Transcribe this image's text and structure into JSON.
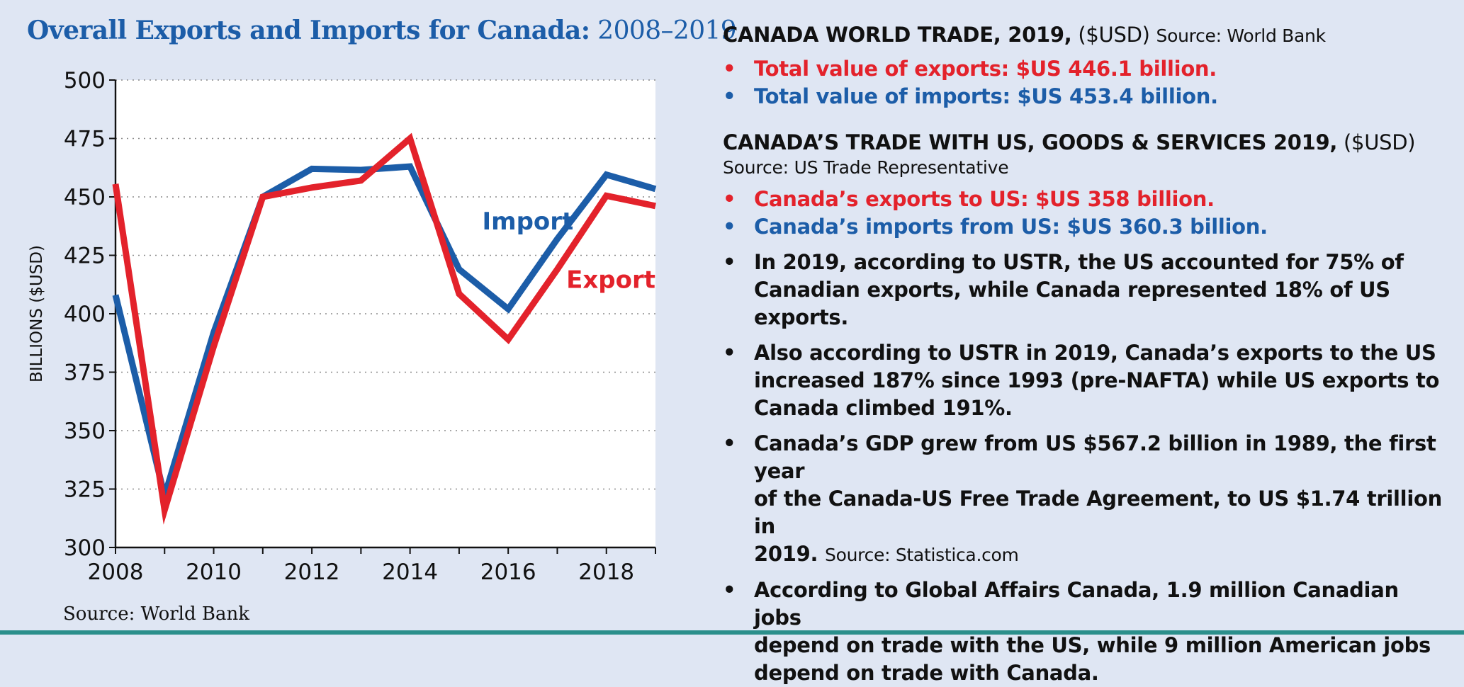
{
  "chart_title": {
    "bold": "Overall Exports and Imports for Canada:",
    "years": "2008–2019"
  },
  "chart_source": "Source: World Bank",
  "colors": {
    "export": "#e3222b",
    "import": "#1c5da8",
    "background": "#dfe6f3",
    "panel": "#ffffff"
  },
  "chart_data": {
    "type": "line",
    "title": "Overall Exports and Imports for Canada: 2008–2019",
    "xlabel": "",
    "ylabel": "BILLIONS ($USD)",
    "x": [
      2008,
      2009,
      2010,
      2011,
      2012,
      2013,
      2014,
      2015,
      2016,
      2017,
      2018,
      2019
    ],
    "xlim": [
      2008,
      2019
    ],
    "ylim": [
      300,
      500
    ],
    "x_ticks": [
      "2008",
      "2010",
      "2012",
      "2014",
      "2016",
      "2018"
    ],
    "y_ticks": [
      "300",
      "325",
      "350",
      "375",
      "400",
      "425",
      "450",
      "475",
      "500"
    ],
    "grid": "horizontal dotted",
    "series": [
      {
        "name": "Import",
        "color": "#1c5da8",
        "values": [
          408,
          322,
          392,
          450,
          462,
          461.5,
          463,
          419,
          402,
          432,
          459.5,
          453.4
        ]
      },
      {
        "name": "Export",
        "color": "#e3222b",
        "values": [
          455.5,
          316,
          386,
          450,
          454,
          457,
          475,
          408.5,
          389,
          419,
          450.5,
          446.1
        ]
      }
    ]
  },
  "info": {
    "world_trade": {
      "heading": "CANADA WORLD TRADE, 2019,",
      "unit": "($USD)",
      "source": "Source: World Bank",
      "bullets": [
        "Total value of exports: $US 446.1 billion.",
        "Total value of imports: $US 453.4 billion."
      ]
    },
    "us_trade": {
      "heading": "CANADA’S TRADE WITH US, GOODS & SERVICES 2019,",
      "unit": "($USD)",
      "source": "Source: US Trade Representative",
      "bullets": [
        "Canada’s exports to US: $US 358 billion.",
        "Canada’s imports from US: $US 360.3 billion."
      ]
    },
    "facts": [
      {
        "lines": [
          "In 2019, according to USTR, the US accounted for 75% of",
          "Canadian exports, while Canada represented 18% of US exports."
        ]
      },
      {
        "lines": [
          "Also according to USTR in 2019, Canada’s exports to the US",
          "increased 187% since 1993 (pre-NAFTA) while US exports to",
          "Canada climbed 191%."
        ]
      },
      {
        "lines": [
          "Canada’s GDP grew from US $567.2 billion in 1989, the first year",
          "of the Canada-US Free Trade Agreement, to US $1.74 trillion in",
          "2019."
        ],
        "source": "Source: Statistica.com"
      },
      {
        "lines": [
          "According to Global Affairs Canada, 1.9 million Canadian jobs",
          "depend on trade with the US, while 9 million American jobs",
          "depend on trade with Canada."
        ]
      }
    ]
  }
}
